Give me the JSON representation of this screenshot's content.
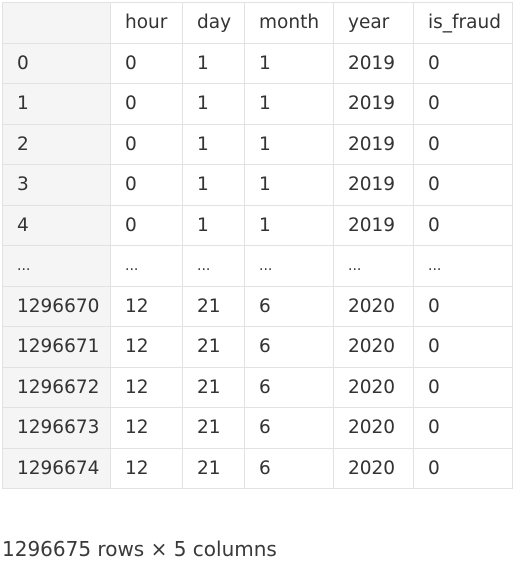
{
  "table": {
    "columns": [
      "hour",
      "day",
      "month",
      "year",
      "is_fraud"
    ],
    "rows": [
      {
        "index": "0",
        "cells": [
          "0",
          "1",
          "1",
          "2019",
          "0"
        ]
      },
      {
        "index": "1",
        "cells": [
          "0",
          "1",
          "1",
          "2019",
          "0"
        ]
      },
      {
        "index": "2",
        "cells": [
          "0",
          "1",
          "1",
          "2019",
          "0"
        ]
      },
      {
        "index": "3",
        "cells": [
          "0",
          "1",
          "1",
          "2019",
          "0"
        ]
      },
      {
        "index": "4",
        "cells": [
          "0",
          "1",
          "1",
          "2019",
          "0"
        ]
      },
      {
        "index": "...",
        "cells": [
          "...",
          "...",
          "...",
          "...",
          "..."
        ]
      },
      {
        "index": "1296670",
        "cells": [
          "12",
          "21",
          "6",
          "2020",
          "0"
        ]
      },
      {
        "index": "1296671",
        "cells": [
          "12",
          "21",
          "6",
          "2020",
          "0"
        ]
      },
      {
        "index": "1296672",
        "cells": [
          "12",
          "21",
          "6",
          "2020",
          "0"
        ]
      },
      {
        "index": "1296673",
        "cells": [
          "12",
          "21",
          "6",
          "2020",
          "0"
        ]
      },
      {
        "index": "1296674",
        "cells": [
          "12",
          "21",
          "6",
          "2020",
          "0"
        ]
      }
    ]
  },
  "footer": {
    "shape_text": "1296675 rows × 5 columns"
  }
}
